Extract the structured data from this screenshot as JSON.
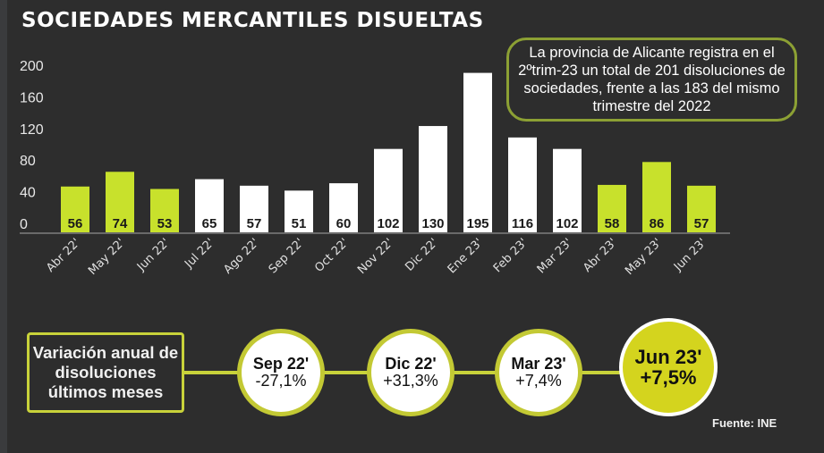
{
  "title": "SOCIEDADES MERCANTILES DISUELTAS",
  "callout": "La provincia de Alicante registra en el 2ºtrim-23 un total de 201 disoluciones de sociedades, frente a las 183 del mismo trimestre del 2022",
  "colors": {
    "highlight": "#c8e12c",
    "normal": "#ffffff",
    "background": "#2d2d2d",
    "accent_border": "#8ca034"
  },
  "chart_data": {
    "type": "bar",
    "title": "SOCIEDADES MERCANTILES DISUELTAS",
    "xlabel": "",
    "ylabel": "",
    "ylim": [
      0,
      200
    ],
    "yticks": [
      "200",
      "160",
      "120",
      "80",
      "40",
      "0"
    ],
    "ytick_values": [
      200,
      160,
      120,
      80,
      40,
      0
    ],
    "grid": false,
    "categories": [
      "Abr 22'",
      "May 22'",
      "Jun 22'",
      "Jul 22'",
      "Ago 22'",
      "Sep 22'",
      "Oct 22'",
      "Nov 22'",
      "Dic 22'",
      "Ene 23'",
      "Feb 23'",
      "Mar 23'",
      "Abr 23'",
      "May 23'",
      "Jun 23'"
    ],
    "values": [
      56,
      74,
      53,
      65,
      57,
      51,
      60,
      102,
      130,
      195,
      116,
      102,
      58,
      86,
      57
    ],
    "value_labels": [
      "56",
      "74",
      "53",
      "65",
      "57",
      "51",
      "60",
      "102",
      "130",
      "195",
      "116",
      "102",
      "58",
      "86",
      "57"
    ],
    "highlighted": [
      true,
      true,
      true,
      false,
      false,
      false,
      false,
      false,
      false,
      false,
      false,
      false,
      true,
      true,
      true
    ]
  },
  "variation": {
    "label": "Variación anual de disoluciones últimos meses",
    "items": [
      {
        "month": "Sep 22'",
        "value": "-27,1%"
      },
      {
        "month": "Dic 22'",
        "value": "+31,3%"
      },
      {
        "month": "Mar 23'",
        "value": "+7,4%"
      },
      {
        "month": "Jun 23'",
        "value": "+7,5%"
      }
    ]
  },
  "source": "Fuente: INE"
}
